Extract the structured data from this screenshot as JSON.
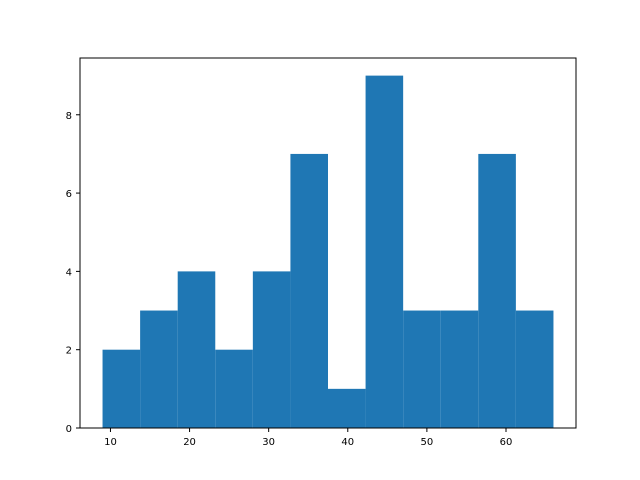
{
  "chart_data": {
    "type": "bar",
    "subtype": "histogram",
    "bin_edges": [
      9.0,
      13.75,
      18.5,
      23.25,
      28.0,
      32.75,
      37.5,
      42.25,
      47.0,
      51.75,
      56.5,
      61.25,
      66.0
    ],
    "counts": [
      2,
      3,
      4,
      2,
      4,
      7,
      1,
      9,
      3,
      3,
      7,
      3
    ],
    "bar_color": "#1f77b4",
    "xlim": [
      6.15,
      68.85
    ],
    "ylim": [
      0,
      9.45
    ],
    "xticks": [
      10,
      20,
      30,
      40,
      50,
      60
    ],
    "yticks": [
      0,
      2,
      4,
      6,
      8
    ],
    "title": "",
    "xlabel": "",
    "ylabel": "",
    "grid": false,
    "legend": false
  }
}
